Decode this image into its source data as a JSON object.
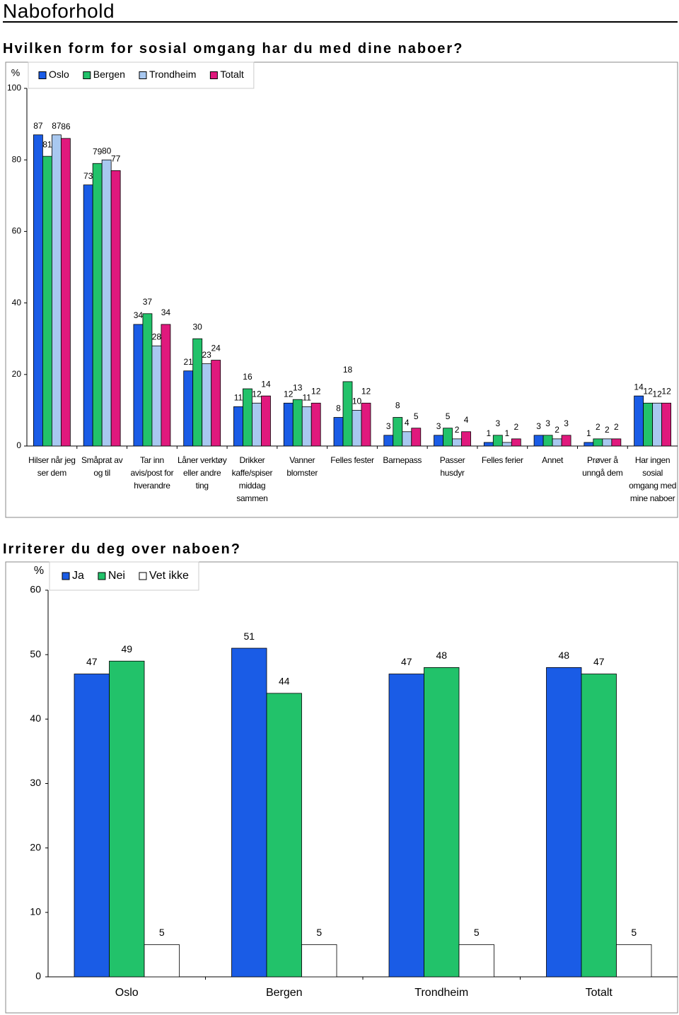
{
  "title": "Naboforhold",
  "chart_data": [
    {
      "type": "bar",
      "title": "Hvilken form for sosial omgang har du med dine naboer?",
      "y_label": "%",
      "categories": [
        "Hilser når jeg ser dem",
        "Småprat av og til",
        "Tar inn avis/post for hverandre",
        "Låner verktøy eller andre ting",
        "Drikker kaffe/spiser middag sammen",
        "Vanner blomster",
        "Felles fester",
        "Barnepass",
        "Passer husdyr",
        "Felles ferier",
        "Annet",
        "Prøver å unngå dem",
        "Har ingen sosial omgang med mine naboer"
      ],
      "series": [
        {
          "name": "Oslo",
          "color": "#1a5ce6",
          "values": [
            87,
            73,
            34,
            21,
            11,
            12,
            8,
            3,
            3,
            1,
            3,
            1,
            14
          ]
        },
        {
          "name": "Bergen",
          "color": "#22c26a",
          "values": [
            81,
            79,
            37,
            30,
            16,
            13,
            18,
            8,
            5,
            3,
            3,
            2,
            12
          ]
        },
        {
          "name": "Trondheim",
          "color": "#a8c8f0",
          "values": [
            87,
            80,
            28,
            23,
            12,
            11,
            10,
            4,
            2,
            1,
            2,
            2,
            12
          ]
        },
        {
          "name": "Totalt",
          "color": "#e0197d",
          "values": [
            86,
            77,
            34,
            24,
            14,
            12,
            12,
            5,
            4,
            2,
            3,
            2,
            12
          ]
        }
      ],
      "ylim": [
        0,
        100
      ],
      "yticks": [
        0,
        20,
        40,
        60,
        80,
        100
      ],
      "grid": false
    },
    {
      "type": "bar",
      "title": "Irriterer du deg over naboen?",
      "y_label": "%",
      "categories": [
        "Oslo",
        "Bergen",
        "Trondheim",
        "Totalt"
      ],
      "series": [
        {
          "name": "Ja",
          "color": "#1a5ce6",
          "values": [
            47,
            51,
            47,
            48
          ]
        },
        {
          "name": "Nei",
          "color": "#22c26a",
          "values": [
            49,
            44,
            48,
            47
          ]
        },
        {
          "name": "Vet ikke",
          "color": "#ffffff",
          "values": [
            5,
            5,
            5,
            5
          ]
        }
      ],
      "ylim": [
        0,
        60
      ],
      "yticks": [
        0,
        10,
        20,
        30,
        40,
        50,
        60
      ],
      "grid": false
    }
  ]
}
